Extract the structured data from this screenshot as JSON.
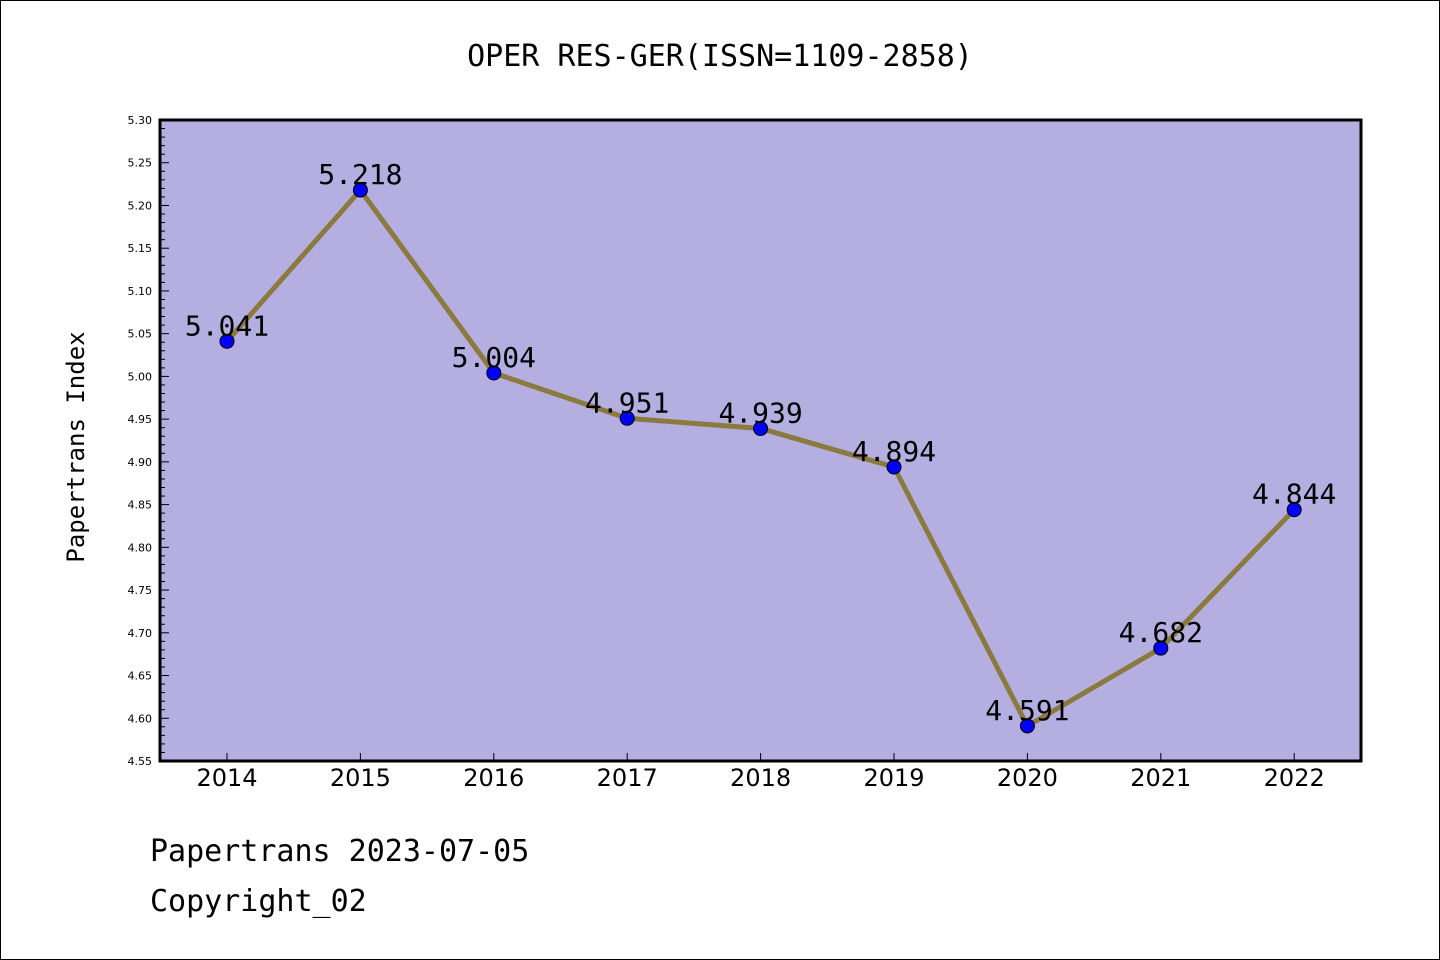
{
  "chart_data": {
    "type": "line",
    "title": "OPER RES-GER(ISSN=1109-2858)",
    "xlabel": "",
    "ylabel": "Papertrans Index",
    "categories": [
      "2014",
      "2015",
      "2016",
      "2017",
      "2018",
      "2019",
      "2020",
      "2021",
      "2022"
    ],
    "values": [
      5.041,
      5.218,
      5.004,
      4.951,
      4.939,
      4.894,
      4.591,
      4.682,
      4.844
    ],
    "data_labels": [
      "5.041",
      "5.218",
      "5.004",
      "4.951",
      "4.939",
      "4.894",
      "4.591",
      "4.682",
      "4.844"
    ],
    "ylim": [
      4.55,
      5.3
    ],
    "yticks": [
      "4.55",
      "4.60",
      "4.65",
      "4.70",
      "4.75",
      "4.80",
      "4.85",
      "4.90",
      "4.95",
      "5.00",
      "5.05",
      "5.10",
      "5.15",
      "5.20",
      "5.25",
      "5.30"
    ],
    "grid": false,
    "colors": {
      "plot_background": "#b5aee1",
      "line": "#8b7a3e",
      "marker": "#0000ff"
    }
  },
  "footer": {
    "date_text": "Papertrans 2023-07-05",
    "copyright_text": "Copyright_02"
  }
}
